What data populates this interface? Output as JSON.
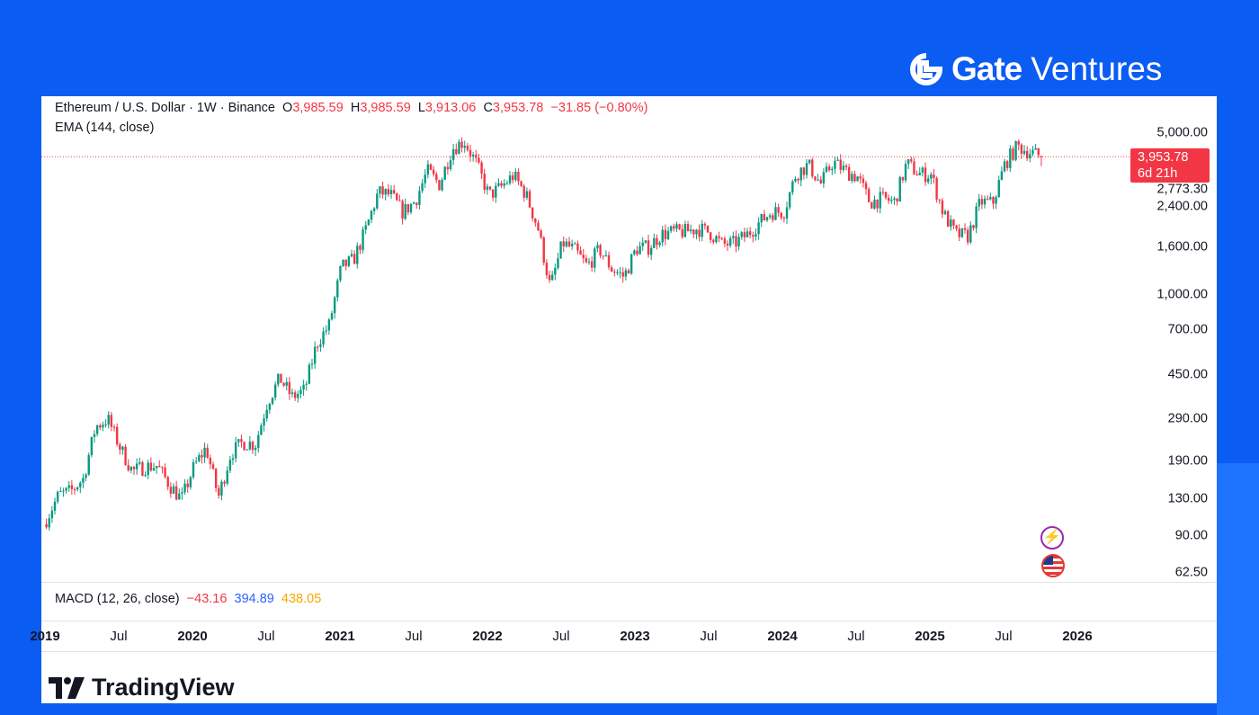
{
  "brand": {
    "name": "Gate",
    "suffix": "Ventures"
  },
  "legend": {
    "symbol": "Ethereum / U.S. Dollar · 1W · Binance",
    "o_label": "O",
    "o": "3,985.59",
    "h_label": "H",
    "h": "3,985.59",
    "l_label": "L",
    "l": "3,913.06",
    "c_label": "C",
    "c": "3,953.78",
    "change": "−31.85 (−0.80%)",
    "ema": "EMA (144, close)"
  },
  "price_tag": {
    "price": "3,953.78",
    "countdown": "6d 21h"
  },
  "macd": {
    "label": "MACD (12, 26, close)",
    "hist": "−43.16",
    "macd": "394.89",
    "signal": "438.05"
  },
  "colors": {
    "up": "#089981",
    "down": "#f23645",
    "bg": "#0b5cf3",
    "macd": "#2962ff",
    "signal": "#f7a600"
  },
  "footer": {
    "logo": "TradingView"
  },
  "icons": [
    "lightning-icon",
    "us-flag-icon"
  ],
  "chart_data": {
    "type": "candlestick",
    "title": "Ethereum / U.S. Dollar · 1W · Binance",
    "yscale": "log",
    "ylim": [
      62.5,
      5000
    ],
    "y_ticks": [
      5000,
      2773.3,
      2400,
      1600,
      1000,
      700,
      450,
      290,
      190,
      130,
      90,
      62.5
    ],
    "y_tick_labels": [
      "5,000.00",
      "2,773.30",
      "2,400.00",
      "1,600.00",
      "1,000.00",
      "700.00",
      "450.00",
      "290.00",
      "190.00",
      "130.00",
      "90.00",
      "62.50"
    ],
    "x_tick_labels": [
      {
        "t": 2019.0,
        "label": "2019",
        "year": true
      },
      {
        "t": 2019.5,
        "label": "Jul"
      },
      {
        "t": 2020.0,
        "label": "2020",
        "year": true
      },
      {
        "t": 2020.5,
        "label": "Jul"
      },
      {
        "t": 2021.0,
        "label": "2021",
        "year": true
      },
      {
        "t": 2021.5,
        "label": "Jul"
      },
      {
        "t": 2022.0,
        "label": "2022",
        "year": true
      },
      {
        "t": 2022.5,
        "label": "Jul"
      },
      {
        "t": 2023.0,
        "label": "2023",
        "year": true
      },
      {
        "t": 2023.5,
        "label": "Jul"
      },
      {
        "t": 2024.0,
        "label": "2024",
        "year": true
      },
      {
        "t": 2024.5,
        "label": "Jul"
      },
      {
        "t": 2025.0,
        "label": "2025",
        "year": true
      },
      {
        "t": 2025.5,
        "label": "Jul"
      },
      {
        "t": 2026.0,
        "label": "2026",
        "year": true
      }
    ],
    "last_price": 3953.78,
    "last_candle": {
      "open": 3985.59,
      "high": 3985.59,
      "low": 3913.06,
      "close": 3953.78
    },
    "monthly_closes_from_2019_01": [
      107,
      136,
      141,
      160,
      268,
      290,
      218,
      172,
      180,
      182,
      151,
      130,
      180,
      218,
      133,
      206,
      230,
      225,
      345,
      435,
      360,
      386,
      615,
      737,
      1314,
      1417,
      1918,
      2773,
      2706,
      2275,
      2536,
      3433,
      3000,
      4288,
      4630,
      3680,
      2688,
      2920,
      3282,
      2730,
      1942,
      1070,
      1680,
      1553,
      1328,
      1572,
      1295,
      1196,
      1585,
      1605,
      1822,
      1870,
      1874,
      1934,
      1857,
      1645,
      1671,
      1815,
      2051,
      2282,
      2283,
      3340,
      3647,
      3014,
      3762,
      3433,
      3232,
      2513,
      2602,
      2518,
      3703,
      3337,
      3300,
      2237,
      1822,
      1794,
      2528,
      2486,
      3700,
      4390,
      4145,
      3953.78
    ]
  }
}
